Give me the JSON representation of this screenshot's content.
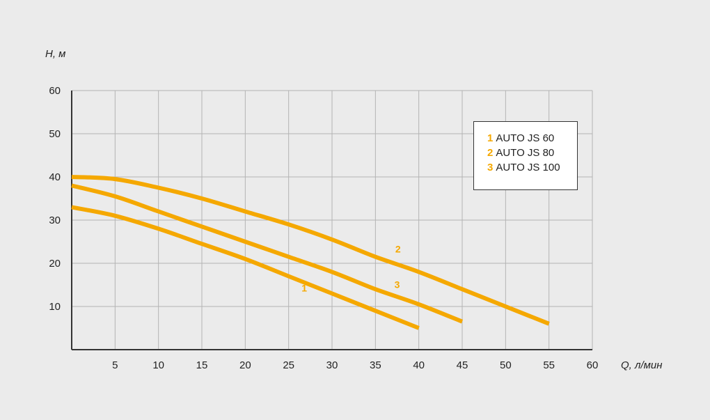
{
  "chart_data": {
    "type": "line",
    "xlabel": "Q, л/мин",
    "ylabel": "H, м",
    "xlim": [
      0,
      60
    ],
    "ylim": [
      0,
      60
    ],
    "x_ticks": [
      5,
      10,
      15,
      20,
      25,
      30,
      35,
      40,
      45,
      50,
      55,
      60
    ],
    "y_ticks": [
      10,
      20,
      30,
      40,
      50,
      60
    ],
    "grid": true,
    "legend_position": "top-right",
    "line_color": "#f5a800",
    "series": [
      {
        "name": "AUTO JS 60",
        "label": "1",
        "x": [
          0,
          5,
          10,
          15,
          20,
          25,
          30,
          35,
          40
        ],
        "y": [
          33,
          31,
          28,
          24.5,
          21,
          17,
          13,
          9,
          5
        ]
      },
      {
        "name": "AUTO JS 80",
        "label": "2",
        "x": [
          0,
          5,
          10,
          15,
          20,
          25,
          30,
          35,
          40,
          45,
          50,
          55
        ],
        "y": [
          40,
          39.5,
          37.5,
          35,
          32,
          29,
          25.5,
          21.5,
          18,
          14,
          10,
          6
        ]
      },
      {
        "name": "AUTO JS 100",
        "label": "3",
        "x": [
          0,
          5,
          10,
          15,
          20,
          25,
          30,
          35,
          40,
          45
        ],
        "y": [
          38,
          35.5,
          32,
          28.5,
          25,
          21.5,
          18,
          14,
          10.5,
          6.5
        ]
      }
    ]
  }
}
